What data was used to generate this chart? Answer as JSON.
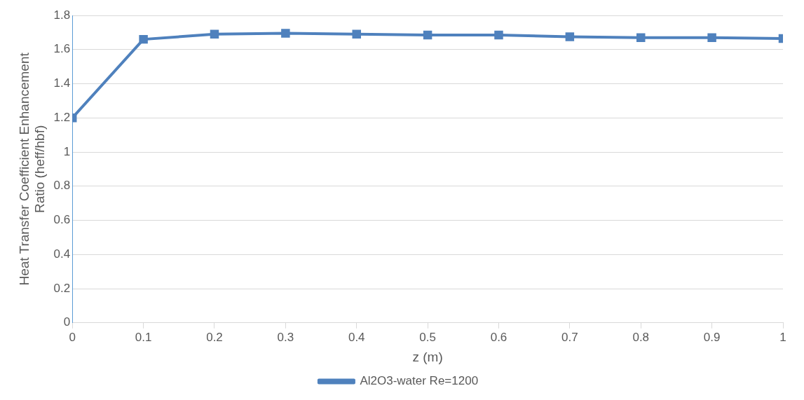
{
  "chart_data": {
    "type": "line",
    "xlabel": "z (m)",
    "ylabel": "Heat Transfer Coefficient Enhancement Ratio (heff/hbf)",
    "x": [
      0,
      0.1,
      0.2,
      0.3,
      0.4,
      0.5,
      0.6,
      0.7,
      0.8,
      0.9,
      1
    ],
    "series": [
      {
        "name": "Al2O3-water Re=1200",
        "color": "#4f81bd",
        "values": [
          1.2,
          1.66,
          1.69,
          1.695,
          1.69,
          1.685,
          1.685,
          1.675,
          1.67,
          1.67,
          1.665
        ]
      }
    ],
    "xlim": [
      0,
      1
    ],
    "xticks": [
      0,
      0.1,
      0.2,
      0.3,
      0.4,
      0.5,
      0.6,
      0.7,
      0.8,
      0.9,
      1
    ],
    "ylim": [
      0,
      1.8
    ],
    "yticks": [
      0,
      0.2,
      0.4,
      0.6,
      0.8,
      1,
      1.2,
      1.4,
      1.6,
      1.8
    ],
    "grid": "y",
    "legend": "bottom",
    "marker": "square",
    "line_style": "solid"
  }
}
